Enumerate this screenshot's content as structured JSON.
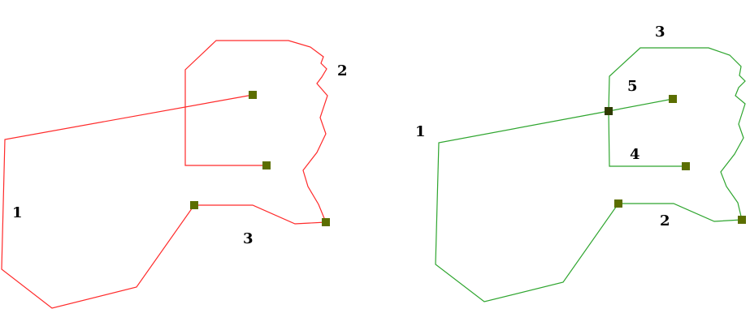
{
  "colors": {
    "background": "#ffffff",
    "left_lines": "#ff2a2a",
    "right_lines": "#2ea52e",
    "node": "#5b6e00",
    "intersection_node": "#2f3a00",
    "label": "#000000"
  },
  "left_figure": {
    "labels": {
      "one": "1",
      "two": "2",
      "three": "3"
    }
  },
  "right_figure": {
    "labels": {
      "one": "1",
      "two": "2",
      "three": "3",
      "four": "4",
      "five": "5"
    }
  }
}
